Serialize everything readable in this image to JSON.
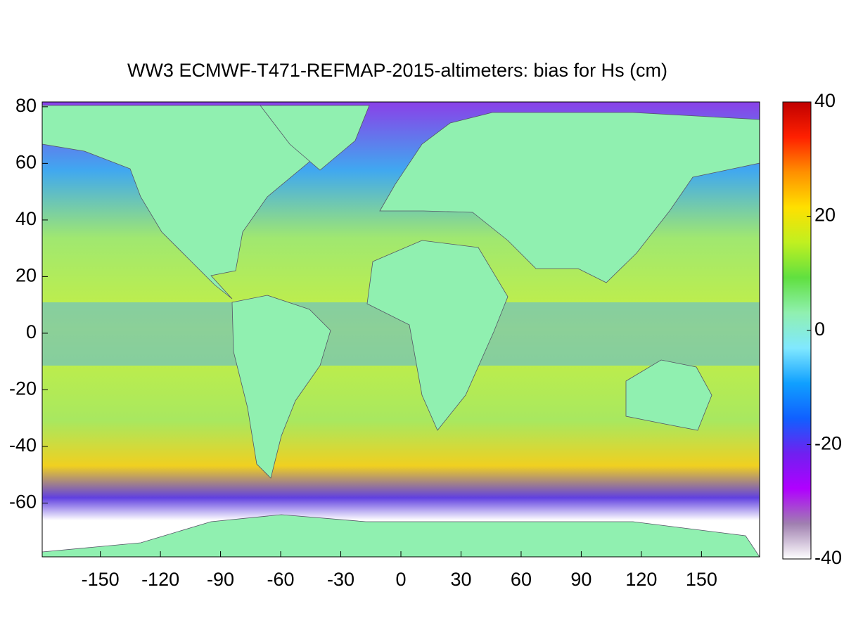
{
  "chart_data": {
    "type": "heatmap",
    "title": "WW3 ECMWF-T471-REFMAP-2015-altimeters: bias for Hs (cm)",
    "xlim": [
      -179,
      179
    ],
    "xticks": [
      -150,
      -120,
      -90,
      -60,
      -30,
      0,
      30,
      60,
      90,
      120,
      150
    ],
    "ylim": [
      -79,
      81.7
    ],
    "yticks": [
      -60,
      -40,
      -20,
      0,
      20,
      40,
      60,
      80
    ],
    "colorbar": {
      "lim": [
        -40,
        40
      ],
      "ticks": [
        -40,
        -20,
        0,
        20,
        40
      ],
      "colormap": [
        "#ffffff",
        "#a080b0",
        "#b000ff",
        "#7020f0",
        "#1060ff",
        "#10a0ff",
        "#80e8ff",
        "#90f0b0",
        "#60e040",
        "#c0f020",
        "#ffe000",
        "#ff9000",
        "#ff2000",
        "#c00000"
      ]
    }
  }
}
